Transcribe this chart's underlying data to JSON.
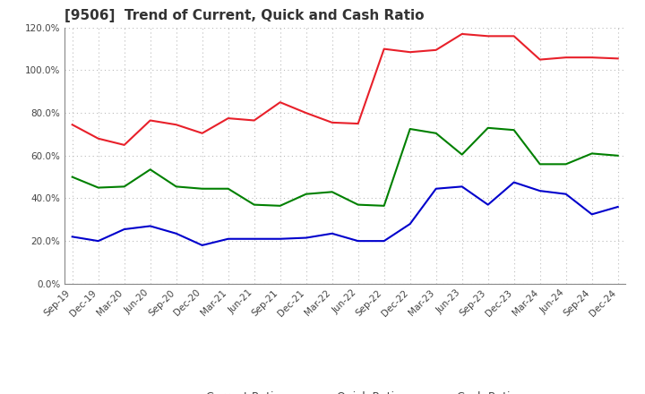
{
  "title": "[9506]  Trend of Current, Quick and Cash Ratio",
  "labels": [
    "Sep-19",
    "Dec-19",
    "Mar-20",
    "Jun-20",
    "Sep-20",
    "Dec-20",
    "Mar-21",
    "Jun-21",
    "Sep-21",
    "Dec-21",
    "Mar-22",
    "Jun-22",
    "Sep-22",
    "Dec-22",
    "Mar-23",
    "Jun-23",
    "Sep-23",
    "Dec-23",
    "Mar-24",
    "Jun-24",
    "Sep-24",
    "Dec-24"
  ],
  "current_ratio": [
    74.5,
    68.0,
    65.0,
    76.5,
    74.5,
    70.5,
    77.5,
    76.5,
    85.0,
    80.0,
    75.5,
    75.0,
    110.0,
    108.5,
    109.5,
    117.0,
    116.0,
    116.0,
    105.0,
    106.0,
    106.0,
    105.5
  ],
  "quick_ratio": [
    50.0,
    45.0,
    45.5,
    53.5,
    45.5,
    44.5,
    44.5,
    37.0,
    36.5,
    42.0,
    43.0,
    37.0,
    36.5,
    72.5,
    70.5,
    60.5,
    73.0,
    72.0,
    56.0,
    56.0,
    61.0,
    60.0
  ],
  "cash_ratio": [
    22.0,
    20.0,
    25.5,
    27.0,
    23.5,
    18.0,
    21.0,
    21.0,
    21.0,
    21.5,
    23.5,
    20.0,
    20.0,
    28.0,
    44.5,
    45.5,
    37.0,
    47.5,
    43.5,
    42.0,
    32.5,
    36.0
  ],
  "current_color": "#e8202a",
  "quick_color": "#008000",
  "cash_color": "#0000cc",
  "ylim": [
    0,
    120
  ],
  "yticks": [
    0,
    20,
    40,
    60,
    80,
    100,
    120
  ],
  "background_color": "#ffffff",
  "grid_color": "#bbbbbb",
  "title_fontsize": 11,
  "legend_fontsize": 9,
  "tick_fontsize": 7.5,
  "title_color": "#333333"
}
